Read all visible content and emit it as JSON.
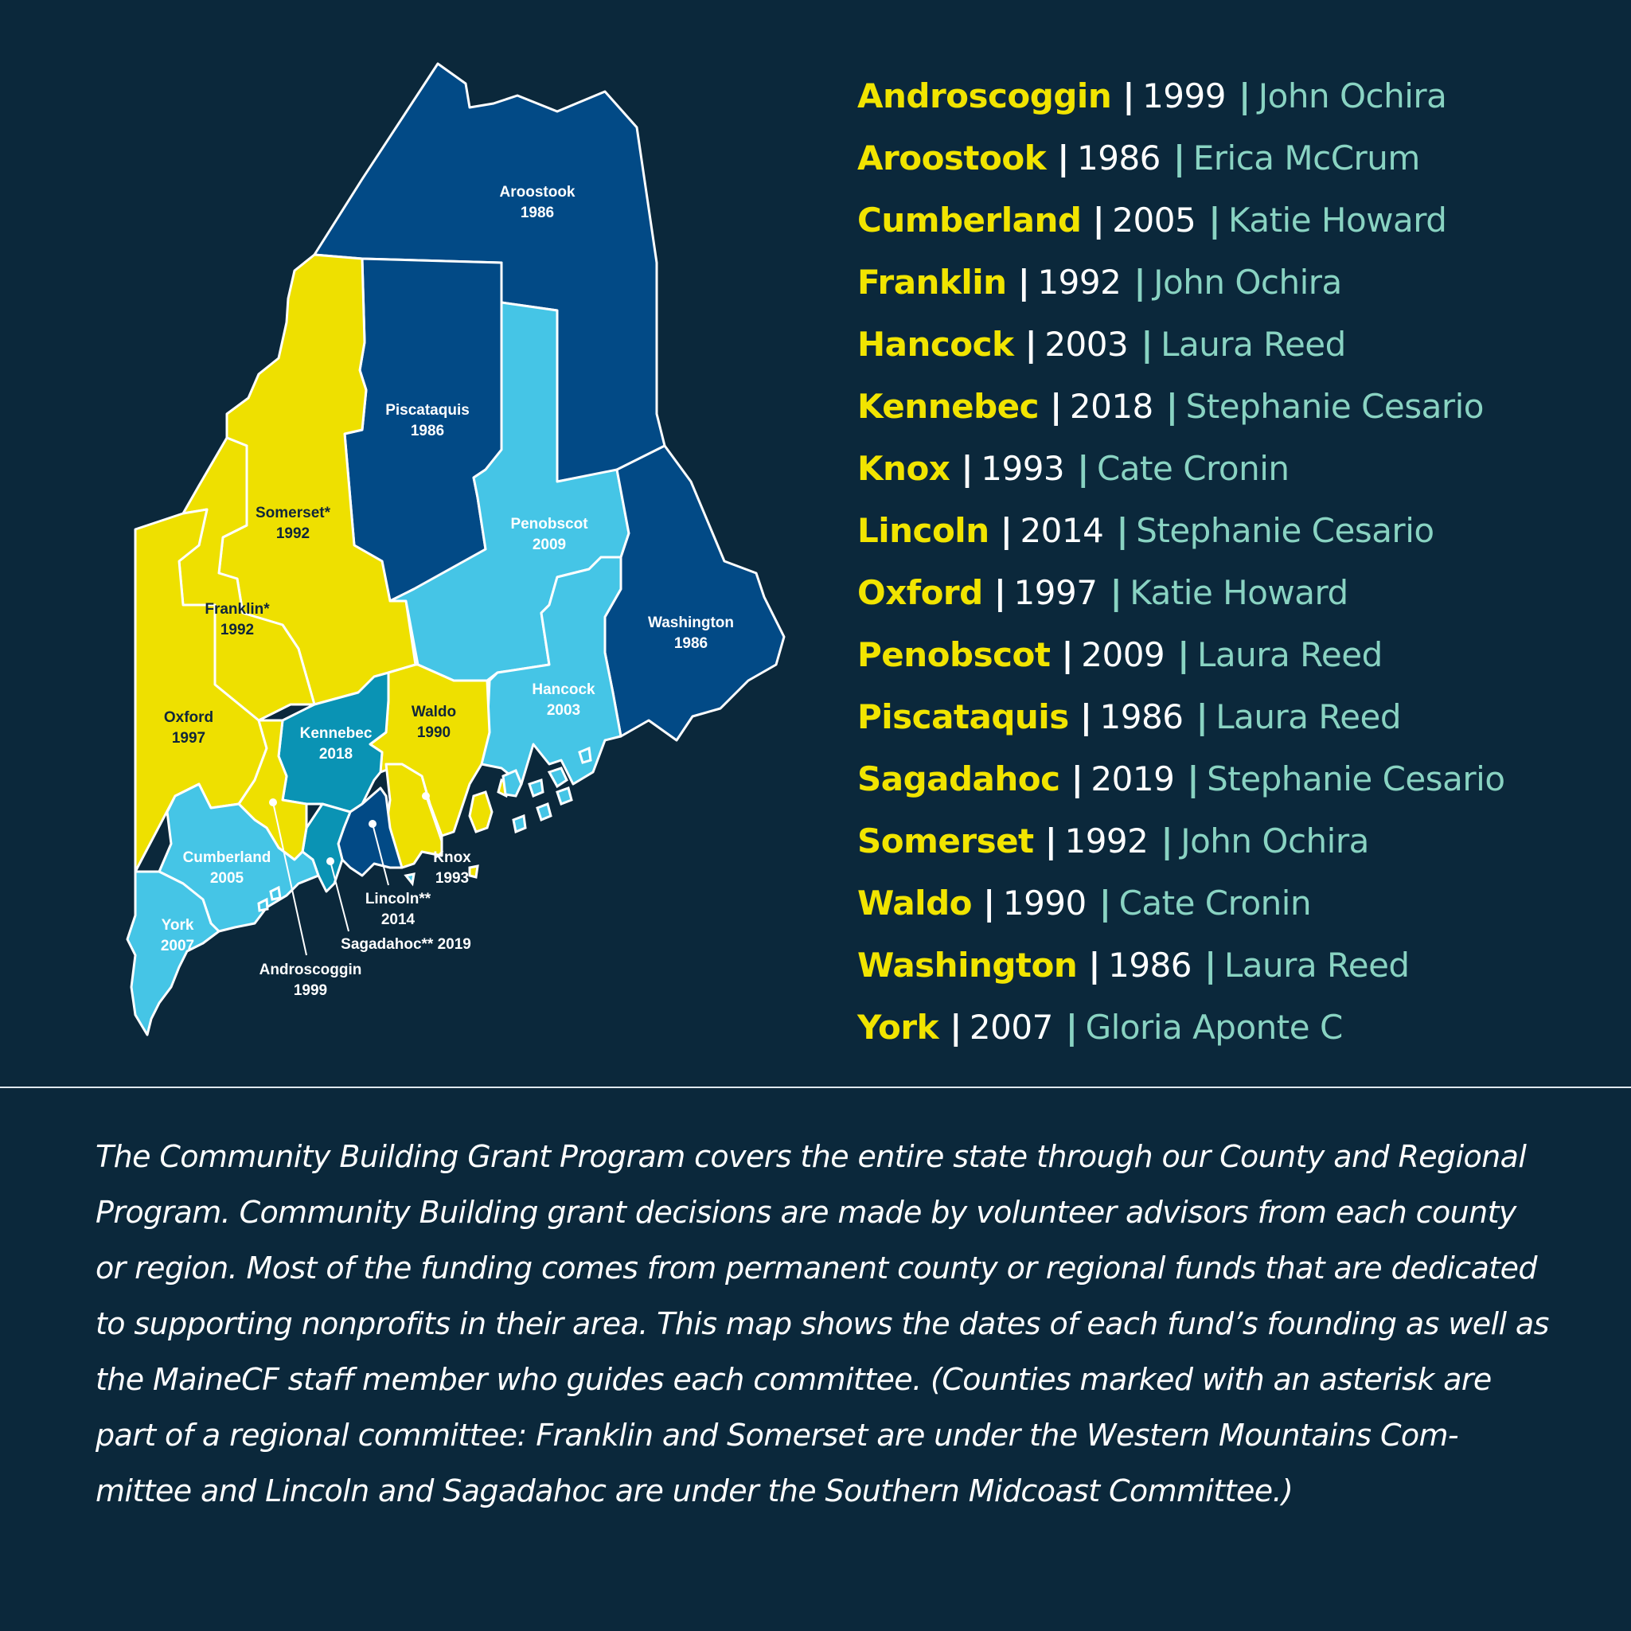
{
  "map": {
    "labels": {
      "aroostook": [
        "Aroostook",
        "1986"
      ],
      "piscataquis": [
        "Piscataquis",
        "1986"
      ],
      "somerset": [
        "Somerset*",
        "1992"
      ],
      "penobscot": [
        "Penobscot",
        "2009"
      ],
      "franklin": [
        "Franklin*",
        "1992"
      ],
      "washington": [
        "Washington",
        "1986"
      ],
      "oxford": [
        "Oxford",
        "1997"
      ],
      "kennebec": [
        "Kennebec",
        "2018"
      ],
      "waldo": [
        "Waldo",
        "1990"
      ],
      "hancock": [
        "Hancock",
        "2003"
      ],
      "cumberland": [
        "Cumberland",
        "2005"
      ],
      "knox": [
        "Knox",
        "1993"
      ],
      "lincoln": [
        "Lincoln**",
        "2014"
      ],
      "sagadahoc": [
        "Sagadahoc** 2019"
      ],
      "york": [
        "York",
        "2007"
      ],
      "androscoggin": [
        "Androscoggin",
        "1999"
      ]
    },
    "colors": {
      "yellow": "#eee000",
      "dark_blue": "#024a86",
      "light_blue": "#45c5e6",
      "teal": "#0a93b4",
      "background": "#0b283b"
    }
  },
  "legend": {
    "separator": "|",
    "items": [
      {
        "county": "Androscoggin",
        "year": "1999",
        "staff": "John Ochira"
      },
      {
        "county": "Aroostook",
        "year": "1986",
        "staff": "Erica McCrum"
      },
      {
        "county": "Cumberland",
        "year": "2005",
        "staff": "Katie Howard"
      },
      {
        "county": "Franklin",
        "year": "1992",
        "staff": "John Ochira"
      },
      {
        "county": "Hancock",
        "year": "2003",
        "staff": "Laura Reed"
      },
      {
        "county": "Kennebec",
        "year": "2018",
        "staff": "Stephanie Cesario"
      },
      {
        "county": "Knox",
        "year": "1993",
        "staff": "Cate Cronin"
      },
      {
        "county": "Lincoln",
        "year": "2014",
        "staff": "Stephanie Cesario"
      },
      {
        "county": "Oxford",
        "year": "1997",
        "staff": "Katie Howard"
      },
      {
        "county": "Penobscot",
        "year": "2009",
        "staff": "Laura Reed"
      },
      {
        "county": "Piscataquis",
        "year": "1986",
        "staff": "Laura Reed"
      },
      {
        "county": "Sagadahoc",
        "year": "2019",
        "staff": "Stephanie Cesario"
      },
      {
        "county": "Somerset",
        "year": "1992",
        "staff": "John Ochira"
      },
      {
        "county": "Waldo",
        "year": "1990",
        "staff": "Cate Cronin"
      },
      {
        "county": "Washington",
        "year": "1986",
        "staff": "Laura Reed"
      },
      {
        "county": "York",
        "year": "2007",
        "staff": "Gloria Aponte C"
      }
    ]
  },
  "description": "The Community Building Grant Program covers the entire state through our County and Regional Program. Community Building grant decisions are made by volunteer advisors from each county or region. Most of the funding comes from permanent county or regional funds that are dedicated to supporting nonprofits in their area. This map shows the dates of each fund’s founding as well as the MaineCF staff member who guides each committee. (Counties marked with an asterisk are part of a regional committee: Franklin and Somerset are under the Western Mountains Com-mittee and Lincoln and Sagadahoc are under the Southern Midcoast Committee.)"
}
